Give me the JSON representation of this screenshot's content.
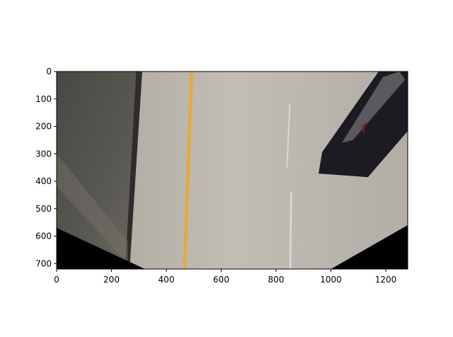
{
  "chart_data": {
    "type": "image",
    "xlim": [
      0,
      1280
    ],
    "ylim": [
      720,
      0
    ],
    "xticks": [
      0,
      200,
      400,
      600,
      800,
      1000,
      1200
    ],
    "yticks": [
      0,
      100,
      200,
      300,
      400,
      500,
      600,
      700
    ]
  }
}
